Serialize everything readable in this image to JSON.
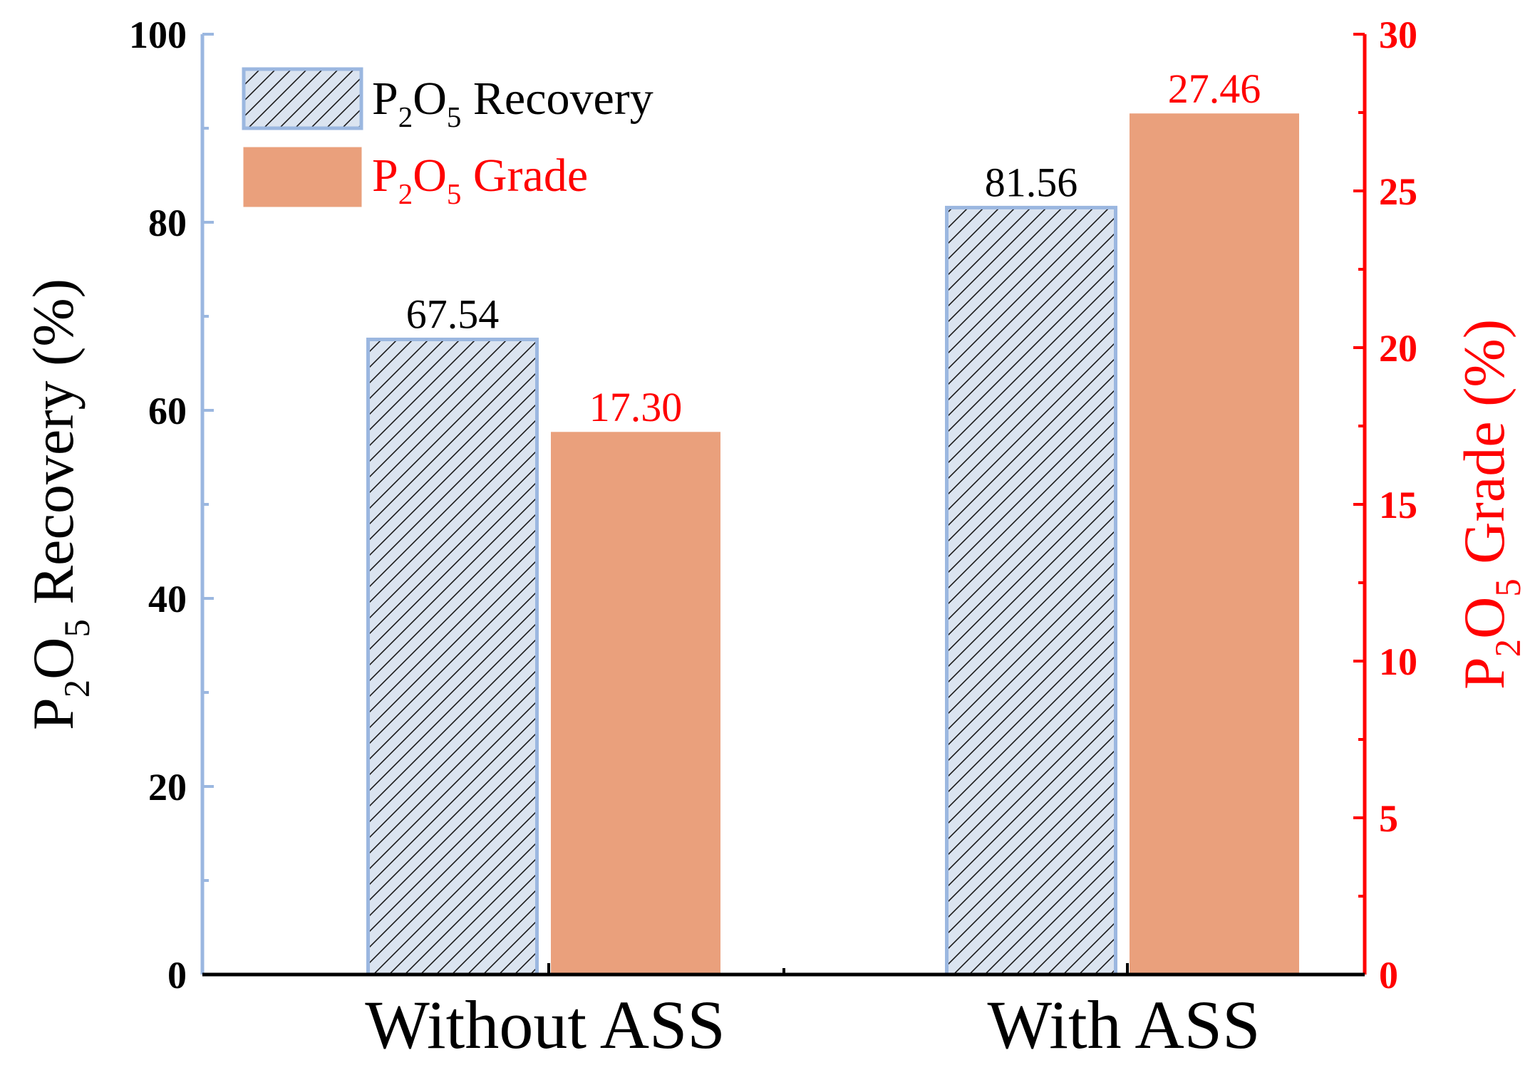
{
  "chart_data": {
    "type": "bar",
    "categories": [
      "Without ASS",
      "With ASS"
    ],
    "series": [
      {
        "name": "P2O5 Recovery",
        "legend": {
          "base": "P",
          "sub1": "2",
          "mid": "O",
          "sub2": "5",
          "rest": " Recovery"
        },
        "axis": "left",
        "values": [
          67.54,
          81.56
        ],
        "labels": [
          "67.54",
          "81.56"
        ],
        "pattern": "hatched",
        "fill": "#dbe4f0",
        "stroke": "#9bb7e0",
        "label_color": "#000000"
      },
      {
        "name": "P2O5 Grade",
        "legend": {
          "base": "P",
          "sub1": "2",
          "mid": "O",
          "sub2": "5",
          "rest": " Grade"
        },
        "axis": "right",
        "values": [
          17.3,
          27.46
        ],
        "labels": [
          "17.30",
          "27.46"
        ],
        "pattern": "solid",
        "fill": "#eaa07c",
        "stroke": "#eaa07c",
        "label_color": "#ff0000"
      }
    ],
    "y_left": {
      "title": {
        "base": "P",
        "sub1": "2",
        "mid": "O",
        "sub2": "5",
        "rest": " Recovery (%)"
      },
      "range": [
        0,
        100
      ],
      "ticks": [
        "0",
        "20",
        "40",
        "60",
        "80",
        "100"
      ],
      "color": "#000000",
      "axis_color": "#9bb7e0"
    },
    "y_right": {
      "title": {
        "base": "P",
        "sub1": "2",
        "mid": "O",
        "sub2": "5",
        "rest": " Grade (%)"
      },
      "range": [
        0,
        30
      ],
      "ticks": [
        "0",
        "5",
        "10",
        "15",
        "20",
        "25",
        "30"
      ],
      "color": "#ff0000"
    },
    "legend_position": "top-left",
    "grid": false
  }
}
